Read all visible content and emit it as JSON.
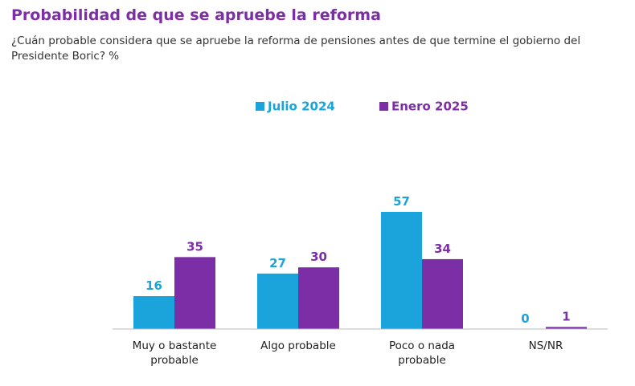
{
  "chart_data": {
    "type": "bar",
    "title": "Probabilidad de que se apruebe la reforma",
    "subtitle": "¿Cuán probable considera que se apruebe la reforma de pensiones antes de que termine el gobierno del Presidente Boric? %",
    "categories": [
      "Muy o bastante probable",
      "Algo probable",
      "Poco o nada probable",
      "NS/NR"
    ],
    "series": [
      {
        "name": "Julio 2024",
        "color": "#1ba3dc",
        "values": [
          16,
          27,
          57,
          0
        ]
      },
      {
        "name": "Enero 2025",
        "color": "#7b2ea6",
        "values": [
          35,
          30,
          34,
          1
        ]
      }
    ]
  }
}
